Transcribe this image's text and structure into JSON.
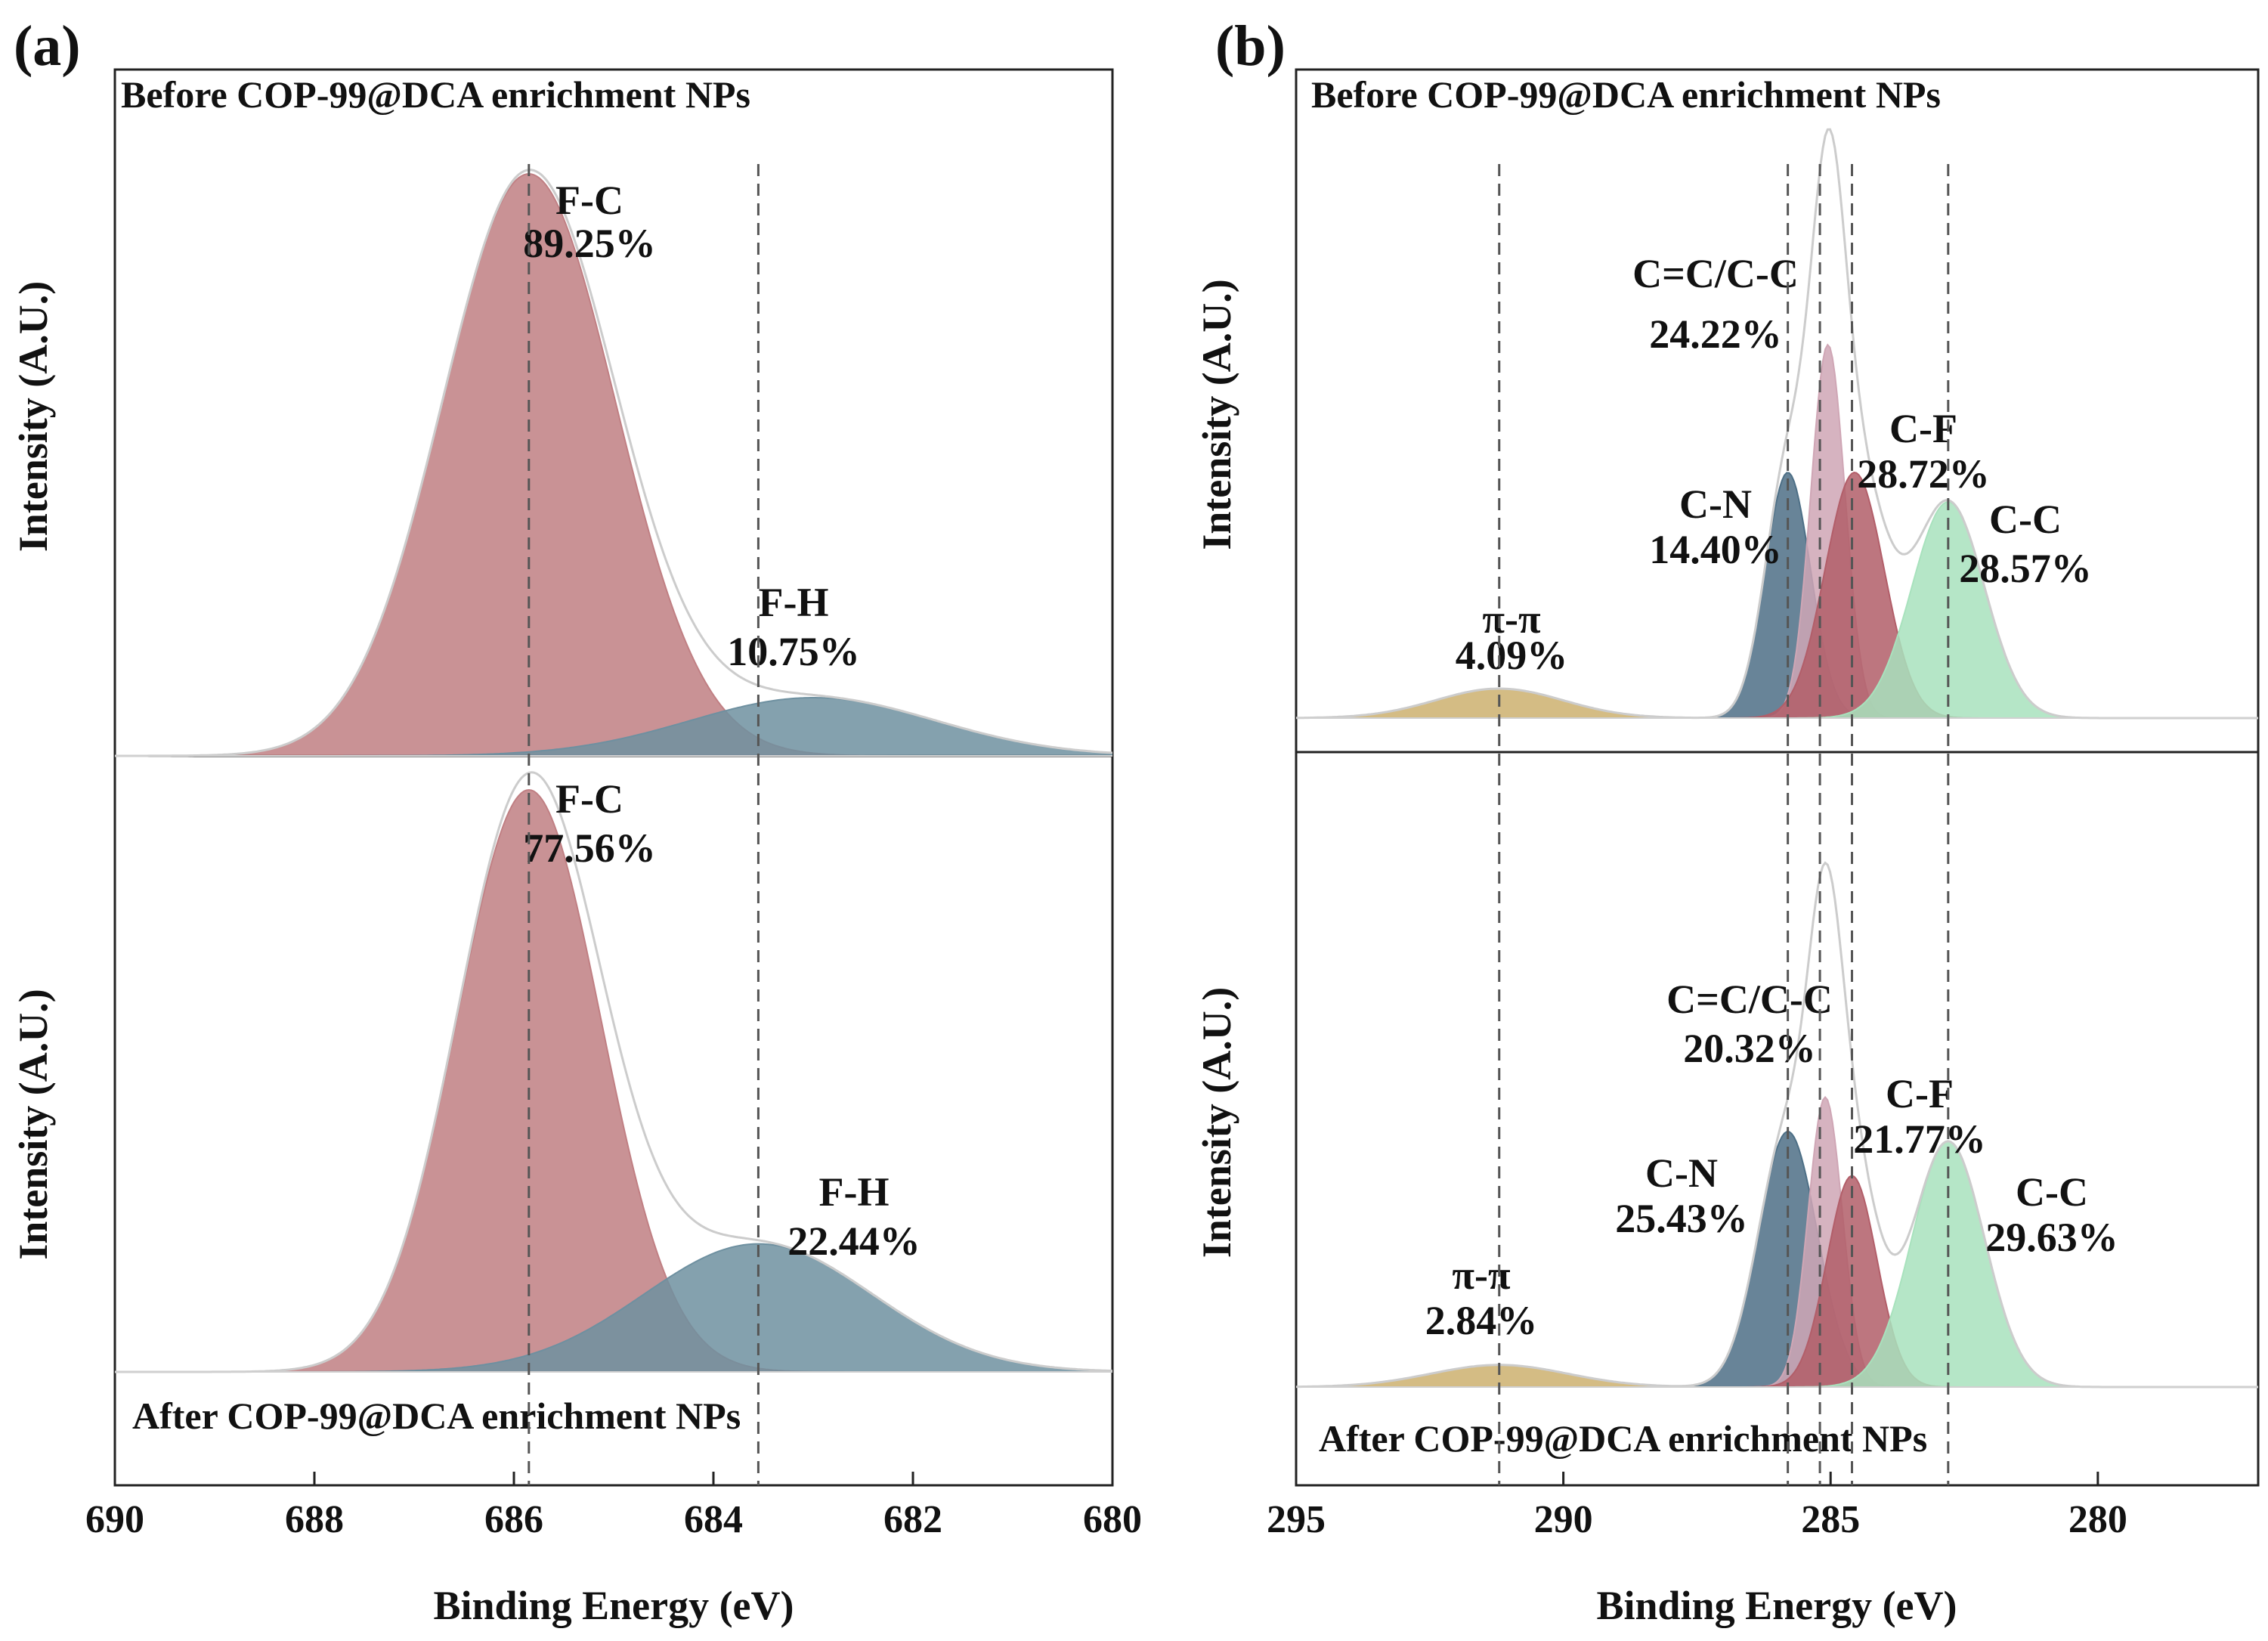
{
  "chart_data": [
    {
      "panel": "(a)",
      "type": "area",
      "xlabel": "Binding Energy (eV)",
      "ylabel": "Intensity (A.U.)",
      "xlim": [
        690,
        680
      ],
      "xticks": [
        690,
        688,
        686,
        684,
        682,
        680
      ],
      "reference_lines_eV": [
        685.85,
        683.55
      ],
      "subplots": [
        {
          "caption": "Before COP-99@DCA enrichment NPs",
          "caption_position": "top-left",
          "peaks": [
            {
              "name": "F-C",
              "percent": "89.25%",
              "center": 685.85,
              "height": 1.0,
              "fwhm": 2.05,
              "color": "#c07f83"
            },
            {
              "name": "F-H",
              "percent": "10.75%",
              "center": 683.0,
              "height": 0.1,
              "fwhm": 2.9,
              "color": "#6e90a0"
            }
          ]
        },
        {
          "caption": "After COP-99@DCA enrichment NPs",
          "caption_position": "bottom-left",
          "peaks": [
            {
              "name": "F-C",
              "percent": "77.56%",
              "center": 685.85,
              "height": 1.0,
              "fwhm": 1.7,
              "color": "#c07f83"
            },
            {
              "name": "F-H",
              "percent": "22.44%",
              "center": 683.55,
              "height": 0.22,
              "fwhm": 2.7,
              "color": "#6e90a0"
            }
          ]
        }
      ]
    },
    {
      "panel": "(b)",
      "type": "area",
      "xlabel": "Binding Energy (eV)",
      "ylabel": "Intensity (A.U.)",
      "xlim": [
        295,
        277
      ],
      "xticks": [
        295,
        290,
        285,
        280
      ],
      "reference_lines_eV": [
        291.2,
        285.8,
        285.2,
        284.6,
        282.8
      ],
      "subplots": [
        {
          "caption": "Before COP-99@DCA enrichment NPs",
          "caption_position": "top-left",
          "peaks": [
            {
              "name": "π-π",
              "percent": "4.09%",
              "center": 291.2,
              "height": 0.06,
              "fwhm": 2.8,
              "color": "#cdb06e"
            },
            {
              "name": "C-N",
              "percent": "14.40%",
              "center": 285.8,
              "height": 0.5,
              "fwhm": 1.0,
              "color": "#4d6f86"
            },
            {
              "name": "C=C/C-C",
              "percent": "24.22%",
              "center": 285.05,
              "height": 0.76,
              "fwhm": 0.75,
              "color": "#cfa6b5"
            },
            {
              "name": "C-F",
              "percent": "28.72%",
              "center": 284.55,
              "height": 0.5,
              "fwhm": 1.3,
              "color": "#b25e69"
            },
            {
              "name": "C-C",
              "percent": "28.57%",
              "center": 282.8,
              "height": 0.44,
              "fwhm": 1.6,
              "color": "#a8e2bd"
            }
          ]
        },
        {
          "caption": "After COP-99@DCA enrichment NPs",
          "caption_position": "bottom-left",
          "peaks": [
            {
              "name": "π-π",
              "percent": "2.84%",
              "center": 291.2,
              "height": 0.045,
              "fwhm": 3.0,
              "color": "#cdb06e"
            },
            {
              "name": "C-N",
              "percent": "25.43%",
              "center": 285.8,
              "height": 0.52,
              "fwhm": 1.3,
              "color": "#4d6f86"
            },
            {
              "name": "C=C/C-C",
              "percent": "20.32%",
              "center": 285.1,
              "height": 0.59,
              "fwhm": 0.75,
              "color": "#cfa6b5"
            },
            {
              "name": "C-F",
              "percent": "21.77%",
              "center": 284.6,
              "height": 0.43,
              "fwhm": 1.1,
              "color": "#b25e69"
            },
            {
              "name": "C-C",
              "percent": "29.63%",
              "center": 282.8,
              "height": 0.5,
              "fwhm": 1.6,
              "color": "#a8e2bd"
            }
          ]
        }
      ]
    }
  ]
}
